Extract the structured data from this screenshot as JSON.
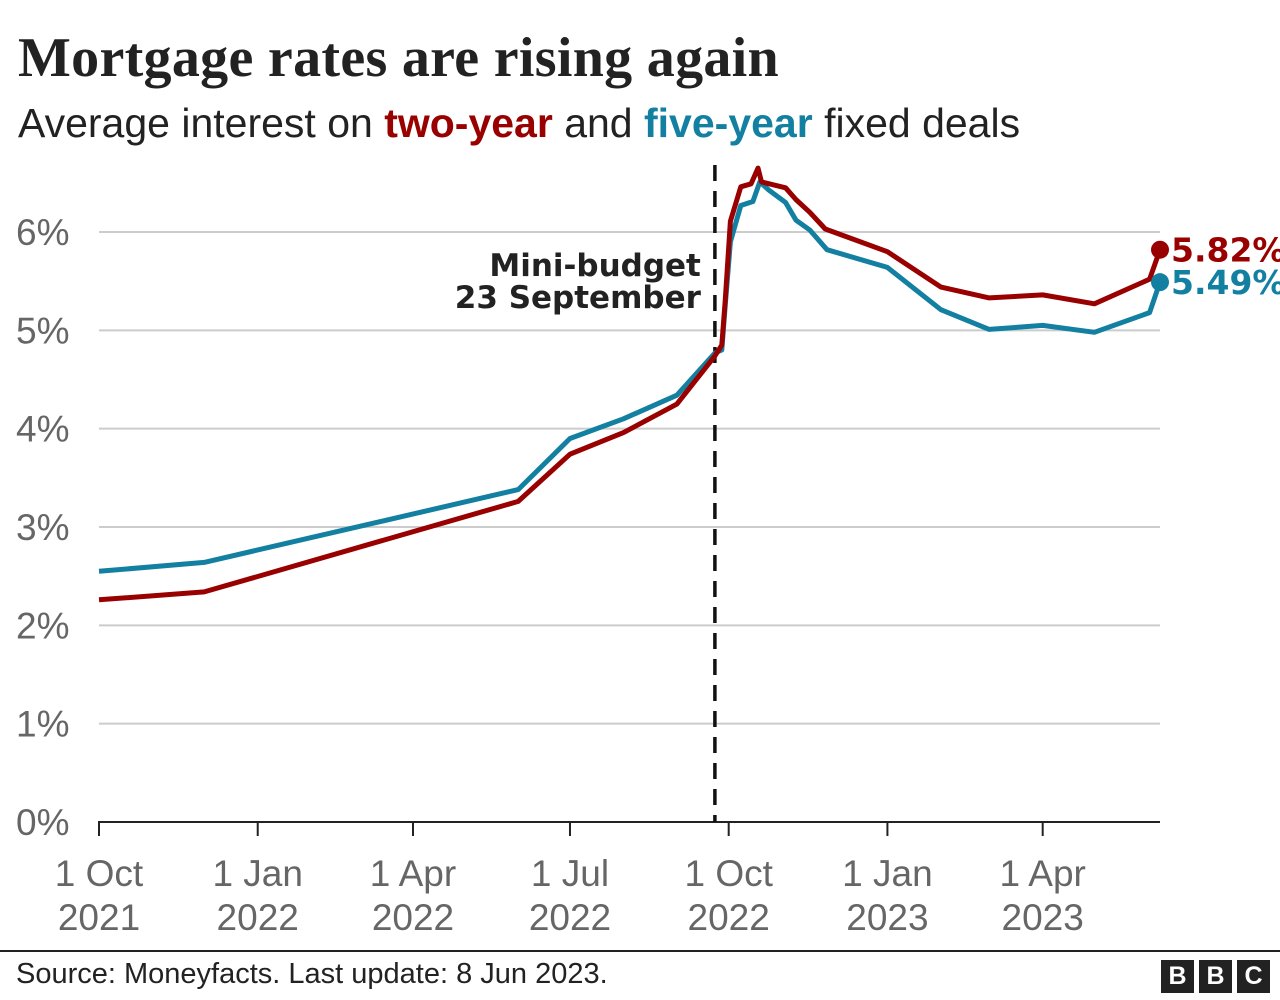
{
  "chart_data": {
    "type": "line",
    "title": "Mortgage rates are rising again",
    "subtitle": {
      "before": "Average interest on ",
      "series1": "two-year",
      "middle": " and ",
      "series2": "five-year",
      "after": " fixed deals"
    },
    "y_ticks": [
      "0%",
      "1%",
      "2%",
      "3%",
      "4%",
      "5%",
      "6%"
    ],
    "ylim": [
      0,
      6
    ],
    "x_ticks": [
      {
        "date": "2021-10-01",
        "line1": "1 Oct",
        "line2": "2021"
      },
      {
        "date": "2022-01-01",
        "line1": "1 Jan",
        "line2": "2022"
      },
      {
        "date": "2022-04-01",
        "line1": "1 Apr",
        "line2": "2022"
      },
      {
        "date": "2022-07-01",
        "line1": "1 Jul",
        "line2": "2022"
      },
      {
        "date": "2022-10-01",
        "line1": "1 Oct",
        "line2": "2022"
      },
      {
        "date": "2023-01-01",
        "line1": "1 Jan",
        "line2": "2023"
      },
      {
        "date": "2023-04-01",
        "line1": "1 Apr",
        "line2": "2023"
      }
    ],
    "xlim": [
      "2021-10-01",
      "2023-06-08"
    ],
    "grid": true,
    "annotation": {
      "date": "2022-09-23",
      "line1": "Mini-budget",
      "line2": "23 September"
    },
    "series": [
      {
        "name": "two-year",
        "color": "#990000",
        "end_label": "5.82%",
        "points": [
          [
            "2021-10-01",
            2.26
          ],
          [
            "2021-12-01",
            2.34
          ],
          [
            "2022-06-01",
            3.26
          ],
          [
            "2022-07-01",
            3.74
          ],
          [
            "2022-08-01",
            3.96
          ],
          [
            "2022-09-01",
            4.25
          ],
          [
            "2022-09-23",
            4.74
          ],
          [
            "2022-09-27",
            4.85
          ],
          [
            "2022-09-29",
            5.3
          ],
          [
            "2022-10-02",
            6.11
          ],
          [
            "2022-10-08",
            6.46
          ],
          [
            "2022-10-14",
            6.49
          ],
          [
            "2022-10-18",
            6.65
          ],
          [
            "2022-10-20",
            6.51
          ],
          [
            "2022-11-03",
            6.45
          ],
          [
            "2022-11-09",
            6.33
          ],
          [
            "2022-11-17",
            6.2
          ],
          [
            "2022-11-26",
            6.03
          ],
          [
            "2023-01-01",
            5.8
          ],
          [
            "2023-02-01",
            5.44
          ],
          [
            "2023-03-01",
            5.33
          ],
          [
            "2023-04-01",
            5.36
          ],
          [
            "2023-05-01",
            5.27
          ],
          [
            "2023-06-02",
            5.52
          ],
          [
            "2023-06-08",
            5.82
          ]
        ]
      },
      {
        "name": "five-year",
        "color": "#1380A1",
        "end_label": "5.49%",
        "points": [
          [
            "2021-10-01",
            2.55
          ],
          [
            "2021-12-01",
            2.64
          ],
          [
            "2022-06-01",
            3.38
          ],
          [
            "2022-07-01",
            3.9
          ],
          [
            "2022-08-01",
            4.1
          ],
          [
            "2022-09-01",
            4.34
          ],
          [
            "2022-09-23",
            4.77
          ],
          [
            "2022-09-27",
            4.8
          ],
          [
            "2022-09-29",
            5.25
          ],
          [
            "2022-10-02",
            5.9
          ],
          [
            "2022-10-08",
            6.27
          ],
          [
            "2022-10-15",
            6.31
          ],
          [
            "2022-10-19",
            6.51
          ],
          [
            "2022-10-24",
            6.43
          ],
          [
            "2022-11-03",
            6.3
          ],
          [
            "2022-11-09",
            6.12
          ],
          [
            "2022-11-17",
            6.02
          ],
          [
            "2022-11-27",
            5.82
          ],
          [
            "2023-01-01",
            5.64
          ],
          [
            "2023-02-01",
            5.21
          ],
          [
            "2023-03-01",
            5.01
          ],
          [
            "2023-04-01",
            5.05
          ],
          [
            "2023-05-01",
            4.98
          ],
          [
            "2023-06-02",
            5.18
          ],
          [
            "2023-06-08",
            5.49
          ]
        ]
      }
    ]
  },
  "footer": {
    "source": "Source: Moneyfacts. Last update: 8 Jun 2023.",
    "logo": [
      "B",
      "B",
      "C"
    ]
  }
}
